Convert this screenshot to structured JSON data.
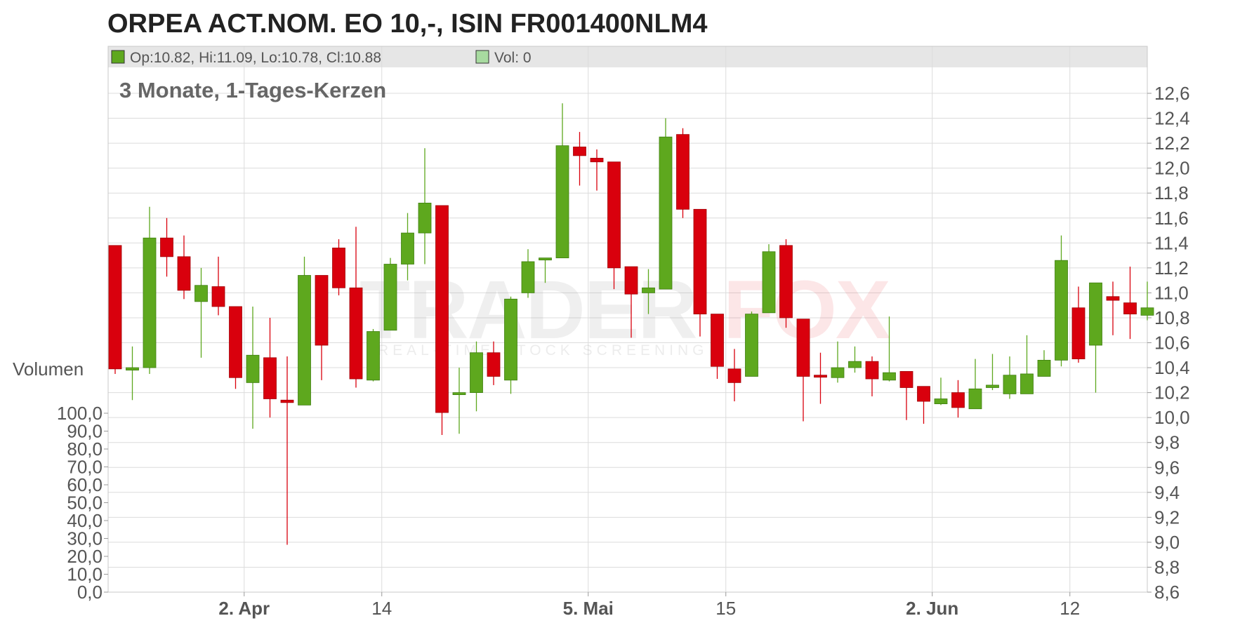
{
  "title": "ORPEA ACT.NOM. EO 10,-, ISIN FR001400NLM4",
  "legend": {
    "ohlc": "Op:10.82, Hi:11.09, Lo:10.78, Cl:10.88",
    "volume": "Vol: 0"
  },
  "subtitle": "3 Monate, 1-Tages-Kerzen",
  "volume_label": "Volumen",
  "watermark": {
    "brand_left": "TRADER",
    "brand_right": "FOX",
    "tagline": "REAL-TIME STOCK SCREENING"
  },
  "colors": {
    "up": "#5ea81e",
    "down": "#d9000d",
    "legend_bg": "#e6e6e6",
    "grid": "#dcdcdc"
  },
  "chart_data": {
    "type": "candlestick",
    "price_axis": {
      "range": [
        8.6,
        12.6
      ],
      "ticks": [
        8.6,
        8.8,
        9.0,
        9.2,
        9.4,
        9.6,
        9.8,
        10.0,
        10.2,
        10.4,
        10.6,
        10.8,
        11.0,
        11.2,
        11.4,
        11.6,
        11.8,
        12.0,
        12.2,
        12.4,
        12.6
      ],
      "tick_labels": [
        "8,6",
        "8,8",
        "9,0",
        "9,2",
        "9,4",
        "9,6",
        "9,8",
        "10,0",
        "10,2",
        "10,4",
        "10,6",
        "10,8",
        "11,0",
        "11,2",
        "11,4",
        "11,6",
        "11,8",
        "12,0",
        "12,2",
        "12,4",
        "12,6"
      ],
      "side": "right"
    },
    "volume_axis": {
      "range": [
        0,
        100
      ],
      "tick_labels": [
        "0,0",
        "10,0",
        "20,0",
        "30,0",
        "40,0",
        "50,0",
        "60,0",
        "70,0",
        "80,0",
        "90,0",
        "100,0"
      ],
      "side": "left"
    },
    "x_ticks": [
      {
        "index": 7,
        "label": "2. Apr",
        "bold": true
      },
      {
        "index": 15,
        "label": "14",
        "bold": false
      },
      {
        "index": 27,
        "label": "5. Mai",
        "bold": true
      },
      {
        "index": 35,
        "label": "15",
        "bold": false
      },
      {
        "index": 47,
        "label": "2. Jun",
        "bold": true
      },
      {
        "index": 55,
        "label": "12",
        "bold": false
      }
    ],
    "grid": true,
    "candles": [
      {
        "o": 11.38,
        "h": 11.38,
        "l": 10.35,
        "c": 10.39
      },
      {
        "o": 10.38,
        "h": 10.57,
        "l": 10.14,
        "c": 10.4
      },
      {
        "o": 10.4,
        "h": 11.69,
        "l": 10.35,
        "c": 11.44
      },
      {
        "o": 11.44,
        "h": 11.6,
        "l": 11.13,
        "c": 11.29
      },
      {
        "o": 11.29,
        "h": 11.46,
        "l": 10.95,
        "c": 11.02
      },
      {
        "o": 10.93,
        "h": 11.2,
        "l": 10.48,
        "c": 11.06
      },
      {
        "o": 11.05,
        "h": 11.29,
        "l": 10.82,
        "c": 10.89
      },
      {
        "o": 10.89,
        "h": 10.89,
        "l": 10.23,
        "c": 10.32
      },
      {
        "o": 10.28,
        "h": 10.89,
        "l": 9.91,
        "c": 10.5
      },
      {
        "o": 10.48,
        "h": 10.8,
        "l": 10.0,
        "c": 10.15
      },
      {
        "o": 10.14,
        "h": 10.49,
        "l": 8.98,
        "c": 10.12
      },
      {
        "o": 10.1,
        "h": 11.29,
        "l": 10.1,
        "c": 11.14
      },
      {
        "o": 11.14,
        "h": 11.14,
        "l": 10.3,
        "c": 10.58
      },
      {
        "o": 11.36,
        "h": 11.43,
        "l": 10.98,
        "c": 11.04
      },
      {
        "o": 11.04,
        "h": 11.53,
        "l": 10.24,
        "c": 10.31
      },
      {
        "o": 10.3,
        "h": 10.71,
        "l": 10.29,
        "c": 10.69
      },
      {
        "o": 10.7,
        "h": 11.28,
        "l": 10.7,
        "c": 11.23
      },
      {
        "o": 11.23,
        "h": 11.64,
        "l": 11.1,
        "c": 11.48
      },
      {
        "o": 11.48,
        "h": 12.16,
        "l": 11.23,
        "c": 11.72
      },
      {
        "o": 11.7,
        "h": 11.7,
        "l": 9.86,
        "c": 10.04
      },
      {
        "o": 10.19,
        "h": 10.4,
        "l": 9.87,
        "c": 10.2
      },
      {
        "o": 10.2,
        "h": 10.61,
        "l": 10.05,
        "c": 10.52
      },
      {
        "o": 10.52,
        "h": 10.61,
        "l": 10.26,
        "c": 10.33
      },
      {
        "o": 10.3,
        "h": 10.97,
        "l": 10.19,
        "c": 10.95
      },
      {
        "o": 11.0,
        "h": 11.35,
        "l": 10.96,
        "c": 11.25
      },
      {
        "o": 11.27,
        "h": 11.27,
        "l": 11.08,
        "c": 11.28
      },
      {
        "o": 11.28,
        "h": 12.52,
        "l": 11.28,
        "c": 12.18
      },
      {
        "o": 12.17,
        "h": 12.29,
        "l": 11.86,
        "c": 12.1
      },
      {
        "o": 12.08,
        "h": 12.15,
        "l": 11.82,
        "c": 12.05
      },
      {
        "o": 12.05,
        "h": 12.05,
        "l": 11.03,
        "c": 11.2
      },
      {
        "o": 11.21,
        "h": 11.21,
        "l": 10.64,
        "c": 10.99
      },
      {
        "o": 11.0,
        "h": 11.19,
        "l": 10.83,
        "c": 11.04
      },
      {
        "o": 11.03,
        "h": 12.4,
        "l": 11.03,
        "c": 12.25
      },
      {
        "o": 12.27,
        "h": 12.32,
        "l": 11.6,
        "c": 11.67
      },
      {
        "o": 11.67,
        "h": 11.67,
        "l": 10.65,
        "c": 10.83
      },
      {
        "o": 10.83,
        "h": 10.83,
        "l": 10.31,
        "c": 10.41
      },
      {
        "o": 10.39,
        "h": 10.55,
        "l": 10.13,
        "c": 10.28
      },
      {
        "o": 10.33,
        "h": 10.85,
        "l": 10.33,
        "c": 10.83
      },
      {
        "o": 10.84,
        "h": 11.39,
        "l": 10.84,
        "c": 11.33
      },
      {
        "o": 11.38,
        "h": 11.43,
        "l": 10.72,
        "c": 10.8
      },
      {
        "o": 10.79,
        "h": 10.79,
        "l": 9.97,
        "c": 10.33
      },
      {
        "o": 10.34,
        "h": 10.52,
        "l": 10.11,
        "c": 10.33
      },
      {
        "o": 10.32,
        "h": 10.61,
        "l": 10.28,
        "c": 10.4
      },
      {
        "o": 10.4,
        "h": 10.57,
        "l": 10.36,
        "c": 10.45
      },
      {
        "o": 10.45,
        "h": 10.49,
        "l": 10.17,
        "c": 10.31
      },
      {
        "o": 10.3,
        "h": 10.81,
        "l": 10.29,
        "c": 10.36
      },
      {
        "o": 10.37,
        "h": 10.37,
        "l": 9.98,
        "c": 10.24
      },
      {
        "o": 10.25,
        "h": 10.25,
        "l": 9.95,
        "c": 10.13
      },
      {
        "o": 10.11,
        "h": 10.32,
        "l": 10.1,
        "c": 10.15
      },
      {
        "o": 10.2,
        "h": 10.3,
        "l": 10.0,
        "c": 10.08
      },
      {
        "o": 10.07,
        "h": 10.47,
        "l": 10.07,
        "c": 10.23
      },
      {
        "o": 10.24,
        "h": 10.51,
        "l": 10.22,
        "c": 10.26
      },
      {
        "o": 10.19,
        "h": 10.49,
        "l": 10.15,
        "c": 10.34
      },
      {
        "o": 10.19,
        "h": 10.66,
        "l": 10.19,
        "c": 10.35
      },
      {
        "o": 10.33,
        "h": 10.54,
        "l": 10.33,
        "c": 10.46
      },
      {
        "o": 10.46,
        "h": 11.46,
        "l": 10.41,
        "c": 11.26
      },
      {
        "o": 10.88,
        "h": 11.05,
        "l": 10.44,
        "c": 10.47
      },
      {
        "o": 10.58,
        "h": 11.08,
        "l": 10.2,
        "c": 11.08
      },
      {
        "o": 10.97,
        "h": 11.09,
        "l": 10.66,
        "c": 10.94
      },
      {
        "o": 10.92,
        "h": 11.21,
        "l": 10.63,
        "c": 10.83
      },
      {
        "o": 10.82,
        "h": 11.09,
        "l": 10.78,
        "c": 10.88
      }
    ]
  }
}
